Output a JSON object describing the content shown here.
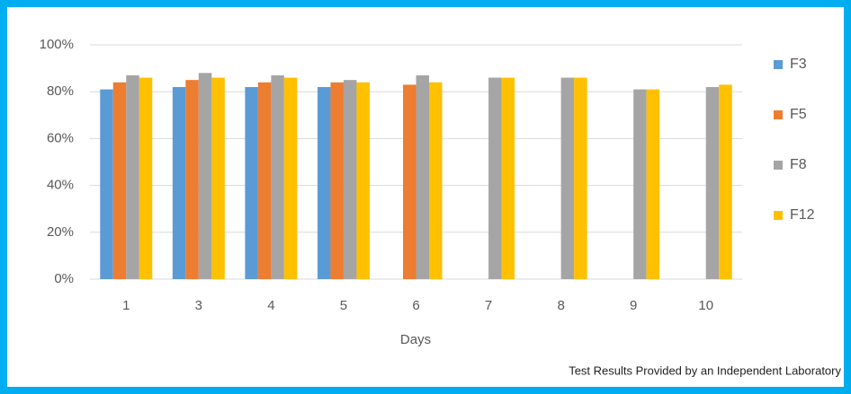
{
  "chart_data": {
    "type": "bar",
    "categories": [
      "1",
      "3",
      "4",
      "5",
      "6",
      "7",
      "8",
      "9",
      "10"
    ],
    "series": [
      {
        "name": "F3",
        "color": "#5b9bd5",
        "values": [
          81,
          82,
          82,
          82,
          null,
          null,
          null,
          null,
          null
        ]
      },
      {
        "name": "F5",
        "color": "#ed7d31",
        "values": [
          84,
          85,
          84,
          84,
          83,
          null,
          null,
          null,
          null
        ]
      },
      {
        "name": "F8",
        "color": "#a5a5a5",
        "values": [
          87,
          88,
          87,
          85,
          87,
          86,
          86,
          81,
          82
        ]
      },
      {
        "name": "F12",
        "color": "#ffc000",
        "values": [
          86,
          86,
          86,
          84,
          84,
          86,
          86,
          81,
          83
        ]
      }
    ],
    "ylim": [
      0,
      100
    ],
    "yticks": [
      {
        "value": 0,
        "label": "0%"
      },
      {
        "value": 20,
        "label": "20%"
      },
      {
        "value": 40,
        "label": "40%"
      },
      {
        "value": 60,
        "label": "60%"
      },
      {
        "value": 80,
        "label": "80%"
      },
      {
        "value": 100,
        "label": "100%"
      }
    ],
    "xlabel": "Days",
    "grid": true,
    "legend": "right",
    "annotation": "Test Results Provided by an Independent Laboratory"
  }
}
